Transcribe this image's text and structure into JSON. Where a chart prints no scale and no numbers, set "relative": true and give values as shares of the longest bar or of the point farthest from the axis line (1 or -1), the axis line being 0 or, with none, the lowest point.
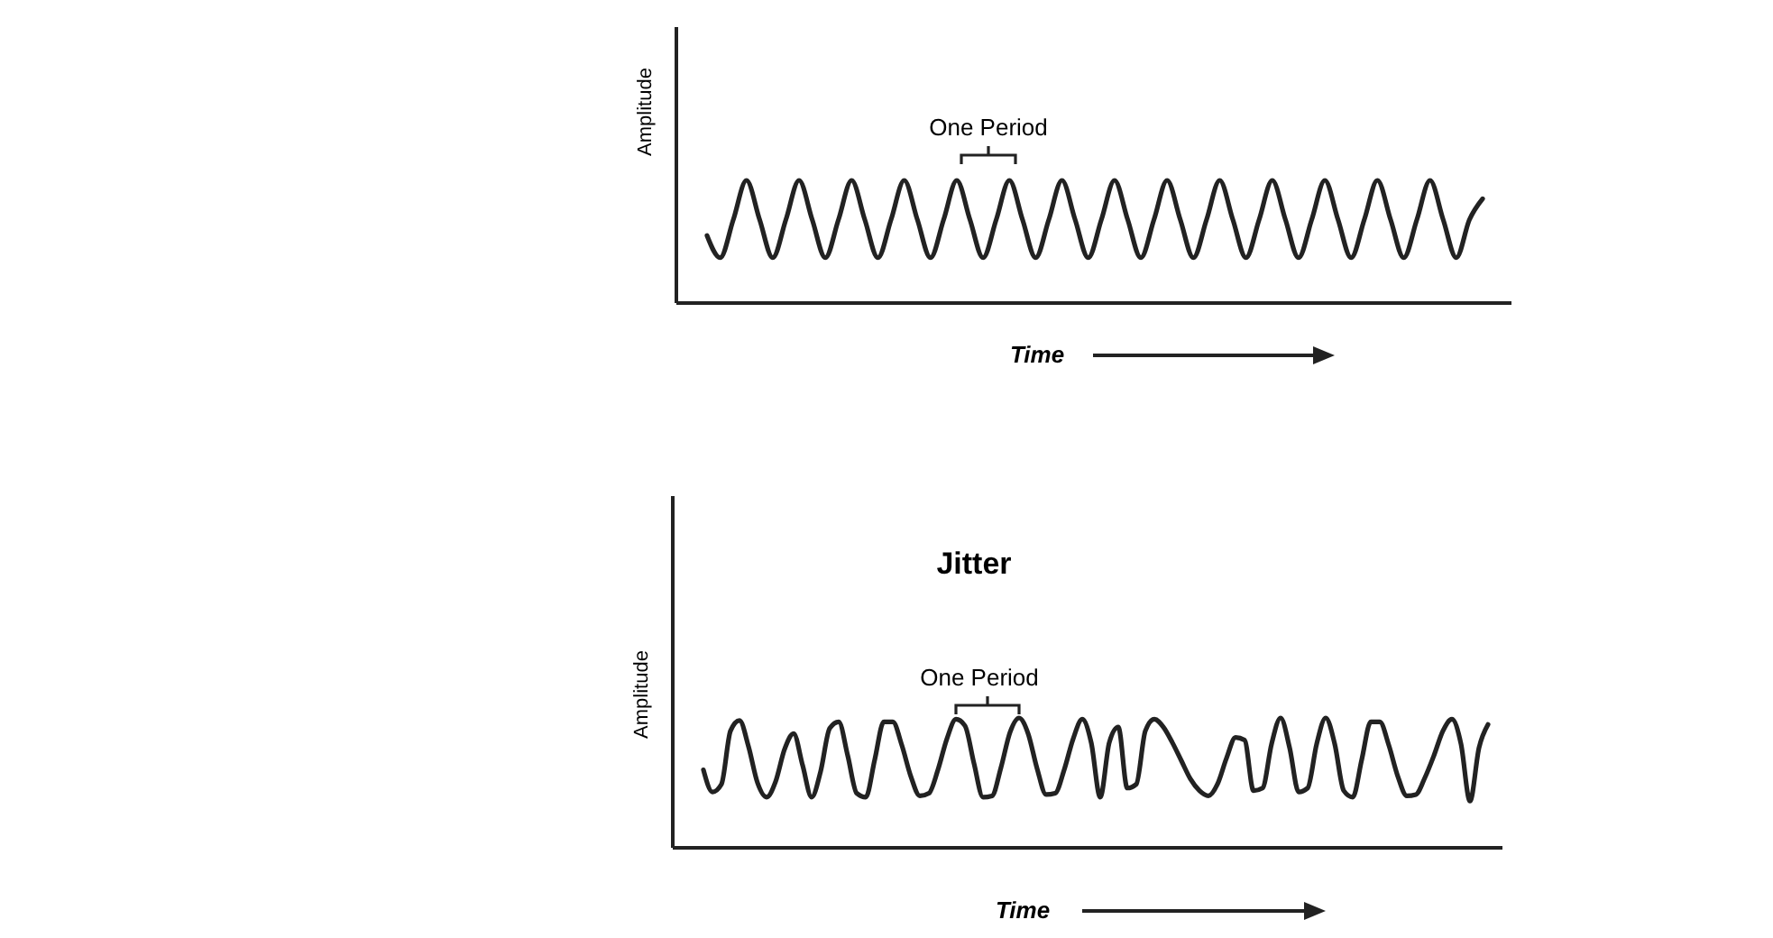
{
  "chart_data": [
    {
      "type": "line",
      "ylabel": "Amplitude",
      "xlabel": "Time",
      "annotations": [
        "One Period"
      ],
      "relative": true,
      "categories": [
        null,
        null,
        null,
        null,
        null,
        null,
        null,
        null,
        null,
        null,
        null,
        null,
        null,
        null,
        null,
        null,
        null,
        null,
        null,
        null,
        null,
        null,
        null,
        null,
        null,
        null,
        null,
        null,
        null,
        null,
        null,
        null,
        null,
        null,
        null,
        null,
        null,
        null,
        null,
        null,
        null,
        null,
        null,
        null,
        null,
        null,
        null,
        null,
        null,
        null,
        null,
        null,
        null,
        null,
        null,
        null,
        null,
        null,
        null,
        null
      ],
      "series": [
        {
          "color": "#222222",
          "values": [
            0.55,
            0.37,
            0.68,
            1,
            0.68,
            0.37,
            0.68,
            1,
            0.68,
            0.37,
            0.68,
            1,
            0.68,
            0.37,
            0.68,
            1,
            0.68,
            0.37,
            0.68,
            1,
            0.68,
            0.37,
            0.68,
            1,
            0.68,
            0.37,
            0.68,
            1,
            0.68,
            0.37,
            0.68,
            1,
            0.68,
            0.37,
            0.68,
            1,
            0.68,
            0.37,
            0.68,
            1,
            0.68,
            0.37,
            0.68,
            1,
            0.68,
            0.37,
            0.68,
            1,
            0.68,
            0.37,
            0.68,
            1,
            0.68,
            0.37,
            0.68,
            1,
            0.68,
            0.37,
            0.68,
            0.85
          ]
        }
      ]
    },
    {
      "type": "line",
      "title": "Jitter",
      "ylabel": "Amplitude",
      "xlabel": "Time",
      "annotations": [
        "One Period"
      ],
      "relative": true,
      "categories": [
        null,
        null,
        null,
        null,
        null,
        null,
        null,
        null,
        null,
        null,
        null,
        null,
        null,
        null,
        null,
        null,
        null,
        null,
        null,
        null,
        null,
        null,
        null,
        null,
        null,
        null,
        null,
        null,
        null,
        null,
        null,
        null,
        null,
        null,
        null,
        null,
        null,
        null,
        null,
        null,
        null,
        null,
        null,
        null,
        null,
        null,
        null,
        null,
        null,
        null,
        null,
        null,
        null,
        null,
        null,
        null,
        null,
        null,
        null,
        null,
        null,
        null,
        null,
        null,
        null,
        null,
        null,
        null,
        null,
        null,
        null,
        null,
        null,
        null,
        null,
        null,
        null,
        null,
        null,
        null,
        null,
        null,
        null,
        null,
        null,
        null,
        null,
        null
      ],
      "series": [
        {
          "color": "#222222",
          "values": [
            0.6,
            0.43,
            0.49,
            0.9,
            0.98,
            0.78,
            0.5,
            0.39,
            0.51,
            0.76,
            0.88,
            0.635,
            0.39,
            0.59,
            0.92,
            0.97,
            0.71,
            0.42,
            0.39,
            0.68,
            0.97,
            0.97,
            0.79,
            0.55,
            0.4,
            0.42,
            0.6,
            0.84,
            0.99,
            0.94,
            0.65,
            0.39,
            0.4,
            0.62,
            0.89,
            1,
            0.88,
            0.61,
            0.41,
            0.42,
            0.6,
            0.84,
            0.99,
            0.81,
            0.39,
            0.81,
            0.93,
            0.46,
            0.49,
            0.9,
            0.99,
            0.93,
            0.81,
            0.67,
            0.53,
            0.44,
            0.4,
            0.49,
            0.69,
            0.85,
            0.83,
            0.44,
            0.46,
            0.8,
            1,
            0.77,
            0.43,
            0.46,
            0.8,
            1,
            0.8,
            0.44,
            0.39,
            0.68,
            0.97,
            0.97,
            0.79,
            0.55,
            0.4,
            0.41,
            0.54,
            0.71,
            0.9,
            0.99,
            0.8,
            0.36,
            0.77,
            0.95
          ]
        }
      ]
    }
  ]
}
